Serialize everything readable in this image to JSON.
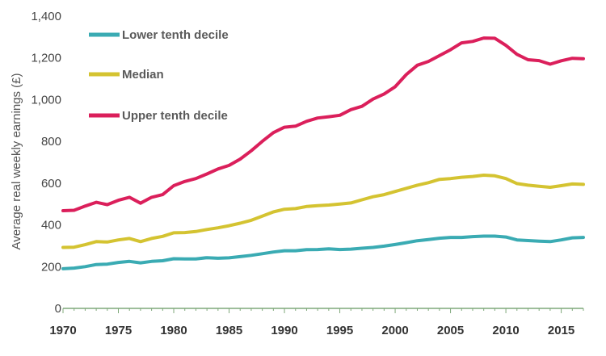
{
  "chart_data": {
    "type": "line",
    "title": "",
    "xlabel": "",
    "ylabel": "Average real weekly earnings (£)",
    "xlim": [
      1970,
      2017
    ],
    "ylim": [
      0,
      1400
    ],
    "x_ticks": [
      "1970",
      "1975",
      "1980",
      "1985",
      "1990",
      "1995",
      "2000",
      "2005",
      "2010",
      "2015"
    ],
    "y_ticks": [
      "0",
      "200",
      "400",
      "600",
      "800",
      "1,000",
      "1,200",
      "1,400"
    ],
    "legend_position": "top-left",
    "grid": false,
    "x": [
      1970,
      1971,
      1972,
      1973,
      1974,
      1975,
      1976,
      1977,
      1978,
      1979,
      1980,
      1981,
      1982,
      1983,
      1984,
      1985,
      1986,
      1987,
      1988,
      1989,
      1990,
      1991,
      1992,
      1993,
      1994,
      1995,
      1996,
      1997,
      1998,
      1999,
      2000,
      2001,
      2002,
      2003,
      2004,
      2005,
      2006,
      2007,
      2008,
      2009,
      2010,
      2011,
      2012,
      2013,
      2014,
      2015,
      2016,
      2017
    ],
    "series": [
      {
        "name": "Lower tenth decile",
        "color": "#3aabb3",
        "values": [
          190,
          193,
          200,
          210,
          212,
          220,
          225,
          218,
          225,
          228,
          238,
          237,
          237,
          243,
          240,
          242,
          248,
          254,
          262,
          270,
          276,
          276,
          281,
          282,
          285,
          282,
          284,
          288,
          292,
          298,
          306,
          315,
          324,
          330,
          336,
          340,
          340,
          344,
          346,
          346,
          342,
          328,
          325,
          322,
          320,
          328,
          338,
          340
        ]
      },
      {
        "name": "Median",
        "color": "#d4c331",
        "values": [
          292,
          293,
          305,
          320,
          318,
          328,
          335,
          320,
          335,
          345,
          362,
          363,
          368,
          378,
          386,
          396,
          408,
          422,
          442,
          462,
          475,
          478,
          488,
          492,
          495,
          500,
          505,
          520,
          535,
          545,
          560,
          575,
          590,
          602,
          618,
          622,
          628,
          632,
          638,
          635,
          622,
          598,
          590,
          585,
          580,
          588,
          596,
          594
        ]
      },
      {
        "name": "Upper tenth decile",
        "color": "#db1f5b",
        "values": [
          468,
          470,
          490,
          508,
          497,
          518,
          532,
          504,
          532,
          545,
          588,
          608,
          622,
          644,
          668,
          685,
          715,
          755,
          800,
          842,
          868,
          873,
          896,
          912,
          918,
          925,
          952,
          968,
          1003,
          1027,
          1062,
          1120,
          1165,
          1183,
          1211,
          1239,
          1272,
          1279,
          1295,
          1294,
          1260,
          1217,
          1191,
          1187,
          1170,
          1186,
          1198,
          1196
        ]
      }
    ]
  }
}
